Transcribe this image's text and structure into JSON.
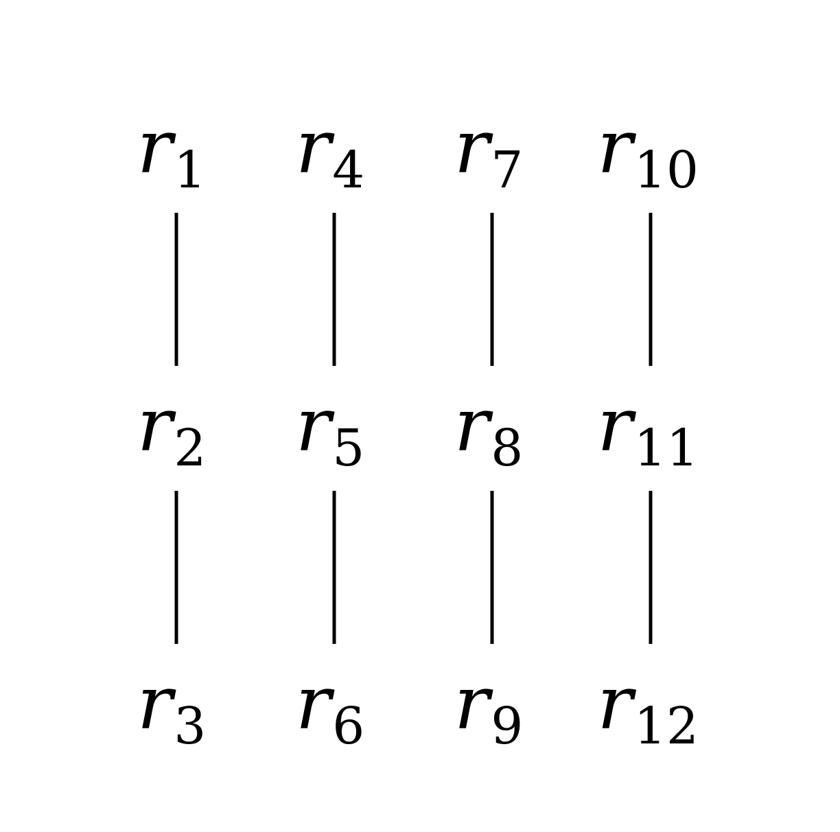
{
  "nodes": [
    {
      "var": "r",
      "sub": "1"
    },
    {
      "var": "r",
      "sub": "2"
    },
    {
      "var": "r",
      "sub": "3"
    },
    {
      "var": "r",
      "sub": "4"
    },
    {
      "var": "r",
      "sub": "5"
    },
    {
      "var": "r",
      "sub": "6"
    },
    {
      "var": "r",
      "sub": "7"
    },
    {
      "var": "r",
      "sub": "8"
    },
    {
      "var": "r",
      "sub": "9"
    },
    {
      "var": "r",
      "sub": "10"
    },
    {
      "var": "r",
      "sub": "11"
    },
    {
      "var": "r",
      "sub": "12"
    }
  ],
  "edges": [
    [
      "r1",
      "r2"
    ],
    [
      "r2",
      "r3"
    ],
    [
      "r4",
      "r5"
    ],
    [
      "r5",
      "r6"
    ],
    [
      "r7",
      "r8"
    ],
    [
      "r8",
      "r9"
    ],
    [
      "r10",
      "r11"
    ],
    [
      "r11",
      "r12"
    ]
  ],
  "colors": {
    "line": "#000000",
    "text": "#000000",
    "background": "#ffffff"
  }
}
